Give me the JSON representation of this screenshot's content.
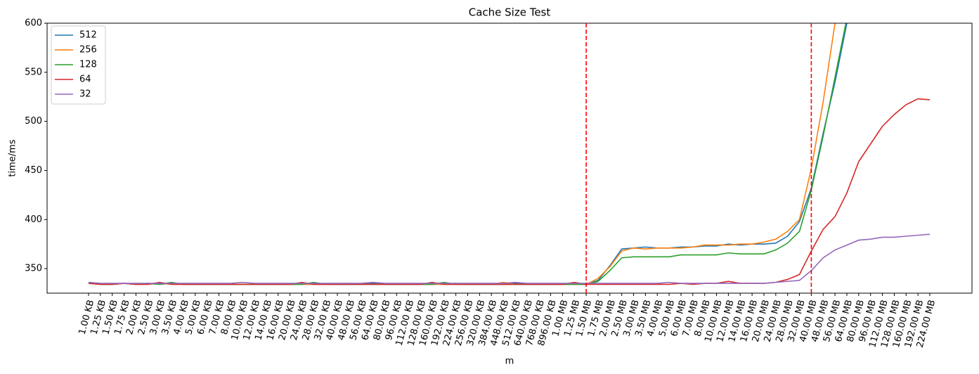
{
  "chart_data": {
    "type": "line",
    "title": "Cache Size Test",
    "x_label": "m",
    "y_label": "time/ms",
    "categories": [
      "1.00 KB",
      "1.25 KB",
      "1.50 KB",
      "1.75 KB",
      "2.00 KB",
      "2.50 KB",
      "3.00 KB",
      "3.50 KB",
      "4.00 KB",
      "5.00 KB",
      "6.00 KB",
      "7.00 KB",
      "8.00 KB",
      "10.00 KB",
      "12.00 KB",
      "14.00 KB",
      "16.00 KB",
      "20.00 KB",
      "24.00 KB",
      "28.00 KB",
      "32.00 KB",
      "40.00 KB",
      "48.00 KB",
      "56.00 KB",
      "64.00 KB",
      "80.00 KB",
      "96.00 KB",
      "112.00 KB",
      "128.00 KB",
      "160.00 KB",
      "192.00 KB",
      "224.00 KB",
      "256.00 KB",
      "320.00 KB",
      "384.00 KB",
      "448.00 KB",
      "512.00 KB",
      "640.00 KB",
      "768.00 KB",
      "896.00 KB",
      "1.00 MB",
      "1.25 MB",
      "1.50 MB",
      "1.75 MB",
      "2.00 MB",
      "2.50 MB",
      "3.00 MB",
      "3.50 MB",
      "4.00 MB",
      "5.00 MB",
      "6.00 MB",
      "7.00 MB",
      "8.00 MB",
      "10.00 MB",
      "12.00 MB",
      "14.00 MB",
      "16.00 MB",
      "20.00 MB",
      "24.00 MB",
      "28.00 MB",
      "32.00 MB",
      "40.00 MB",
      "48.00 MB",
      "56.00 MB",
      "64.00 MB",
      "80.00 MB",
      "96.00 MB",
      "112.00 MB",
      "128.00 MB",
      "160.00 MB",
      "192.00 MB",
      "224.00 MB"
    ],
    "series": [
      {
        "name": "512",
        "color": "#1f77b4",
        "values": [
          336,
          334,
          334,
          335,
          334,
          335,
          334,
          335,
          334,
          334,
          334,
          334,
          334,
          334,
          334,
          334,
          334,
          334,
          334,
          334,
          334,
          334,
          334,
          334,
          335,
          334,
          334,
          334,
          334,
          334,
          334,
          335,
          334,
          334,
          334,
          334,
          335,
          334,
          334,
          334,
          334,
          334,
          334,
          338,
          353,
          370,
          371,
          372,
          371,
          371,
          372,
          372,
          373,
          373,
          375,
          374,
          375,
          375,
          376,
          383,
          398,
          432,
          488,
          540,
          600,
          null,
          null,
          null,
          null,
          null,
          null,
          null
        ]
      },
      {
        "name": "256",
        "color": "#ff7f0e",
        "values": [
          335,
          334,
          334,
          335,
          334,
          334,
          335,
          334,
          334,
          334,
          334,
          334,
          334,
          334,
          334,
          334,
          334,
          334,
          334,
          334,
          334,
          334,
          335,
          334,
          334,
          334,
          334,
          334,
          334,
          334,
          334,
          334,
          334,
          334,
          334,
          336,
          334,
          334,
          334,
          334,
          334,
          334,
          334,
          340,
          352,
          368,
          371,
          370,
          371,
          371,
          371,
          372,
          374,
          374,
          374,
          375,
          375,
          377,
          380,
          388,
          400,
          452,
          520,
          600,
          680,
          null,
          null,
          null,
          null,
          null,
          null,
          null
        ]
      },
      {
        "name": "128",
        "color": "#2ca02c",
        "values": [
          335,
          334,
          334,
          335,
          334,
          335,
          334,
          336,
          334,
          334,
          334,
          334,
          334,
          334,
          334,
          334,
          334,
          334,
          334,
          336,
          334,
          334,
          334,
          334,
          334,
          334,
          334,
          334,
          334,
          334,
          336,
          334,
          334,
          334,
          334,
          334,
          334,
          334,
          334,
          334,
          334,
          334,
          334,
          337,
          348,
          361,
          362,
          362,
          362,
          362,
          364,
          364,
          364,
          364,
          366,
          365,
          365,
          365,
          369,
          376,
          388,
          430,
          485,
          545,
          605,
          null,
          null,
          null,
          null,
          null,
          null,
          null
        ]
      },
      {
        "name": "64",
        "color": "#d62728",
        "values": [
          335,
          334,
          334,
          335,
          334,
          334,
          336,
          334,
          334,
          334,
          334,
          334,
          334,
          334,
          334,
          334,
          334,
          334,
          336,
          334,
          334,
          334,
          334,
          334,
          334,
          334,
          334,
          334,
          334,
          336,
          334,
          334,
          334,
          334,
          334,
          334,
          334,
          334,
          334,
          334,
          334,
          336,
          334,
          334,
          334,
          334,
          334,
          334,
          334,
          334,
          335,
          334,
          335,
          335,
          337,
          335,
          335,
          335,
          336,
          339,
          344,
          368,
          390,
          403,
          427,
          459,
          477,
          495,
          507,
          517,
          523,
          522
        ]
      },
      {
        "name": "32",
        "color": "#9467bd",
        "values": [
          336,
          335,
          335,
          335,
          335,
          335,
          335,
          335,
          335,
          335,
          335,
          335,
          335,
          336,
          335,
          335,
          335,
          335,
          335,
          335,
          335,
          335,
          335,
          335,
          336,
          335,
          335,
          335,
          335,
          335,
          335,
          335,
          335,
          335,
          335,
          335,
          336,
          335,
          335,
          335,
          335,
          335,
          335,
          335,
          335,
          335,
          335,
          335,
          335,
          336,
          335,
          335,
          335,
          335,
          335,
          335,
          335,
          335,
          336,
          337,
          338,
          348,
          361,
          369,
          374,
          379,
          380,
          382,
          382,
          383,
          384,
          385
        ]
      }
    ],
    "ylim": [
      325,
      600
    ],
    "yticks": [
      350,
      400,
      450,
      500,
      550,
      600
    ],
    "vlines": [
      "1.50 MB",
      "40.00 MB"
    ],
    "vline_color": "#ff0000",
    "legend": "upper left"
  }
}
